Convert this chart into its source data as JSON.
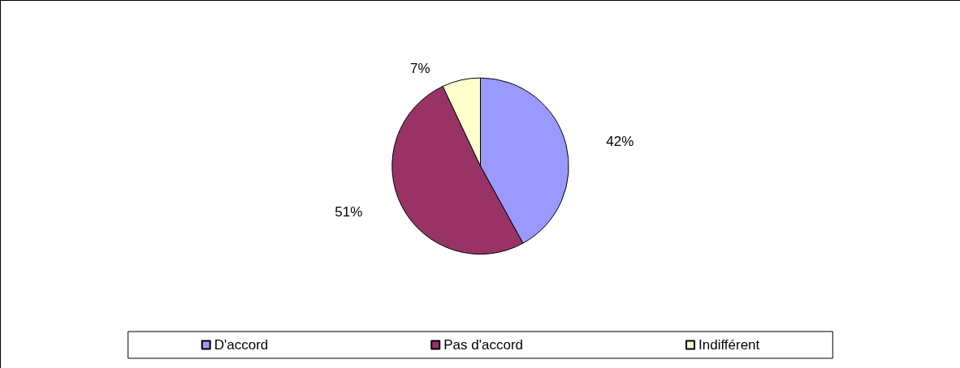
{
  "chart_data": {
    "type": "pie",
    "categories": [
      "D'accord",
      "Pas d'accord",
      "Indifférent"
    ],
    "values": [
      42,
      51,
      7
    ],
    "colors": [
      "#9999ff",
      "#993366",
      "#ffffcc"
    ],
    "value_labels": [
      "42%",
      "51%",
      "7%"
    ],
    "legend": "bottom"
  }
}
